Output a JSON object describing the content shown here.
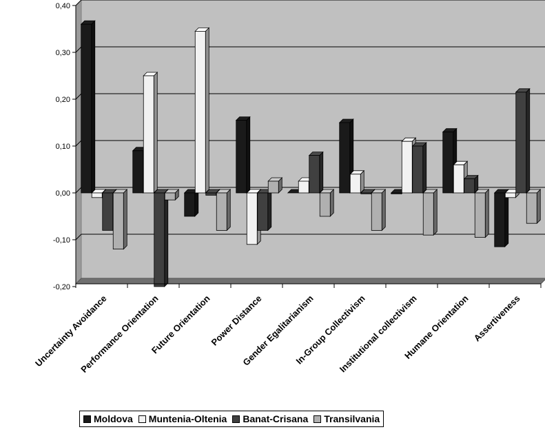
{
  "chart_data": {
    "type": "bar",
    "categories": [
      "Uncertainty Avoidance",
      "Performance Orientation",
      "Future Orientation",
      "Power Distance",
      "Gender Egalitarianism",
      "In-Group Collectivism",
      "Institutional collectivism",
      "Humane Orientation",
      "Assertiveness"
    ],
    "series": [
      {
        "name": "Moldova",
        "color": "#1a1a1a",
        "values": [
          0.36,
          0.09,
          -0.05,
          0.155,
          0.0,
          0.15,
          -0.002,
          0.13,
          -0.115
        ]
      },
      {
        "name": "Muntenia-Oltenia",
        "color": "#f2f2f2",
        "values": [
          -0.01,
          0.25,
          0.345,
          -0.11,
          0.025,
          0.04,
          0.11,
          0.06,
          -0.01
        ]
      },
      {
        "name": "Banat-Crisana",
        "color": "#404040",
        "values": [
          -0.08,
          -0.2,
          -0.005,
          -0.08,
          0.08,
          -0.002,
          0.1,
          0.03,
          0.215
        ]
      },
      {
        "name": "Transilvania",
        "color": "#b0b0b0",
        "values": [
          -0.12,
          -0.015,
          -0.08,
          0.025,
          -0.05,
          -0.08,
          -0.09,
          -0.095,
          -0.065
        ]
      }
    ],
    "y_ticks": [
      "0,40",
      "0,30",
      "0,20",
      "0,10",
      "0,00",
      "-0,10",
      "-0,20"
    ],
    "ylim": [
      -0.2,
      0.4
    ],
    "grid": true,
    "legend_position": "bottom",
    "title": "",
    "xlabel": "",
    "ylabel": ""
  }
}
